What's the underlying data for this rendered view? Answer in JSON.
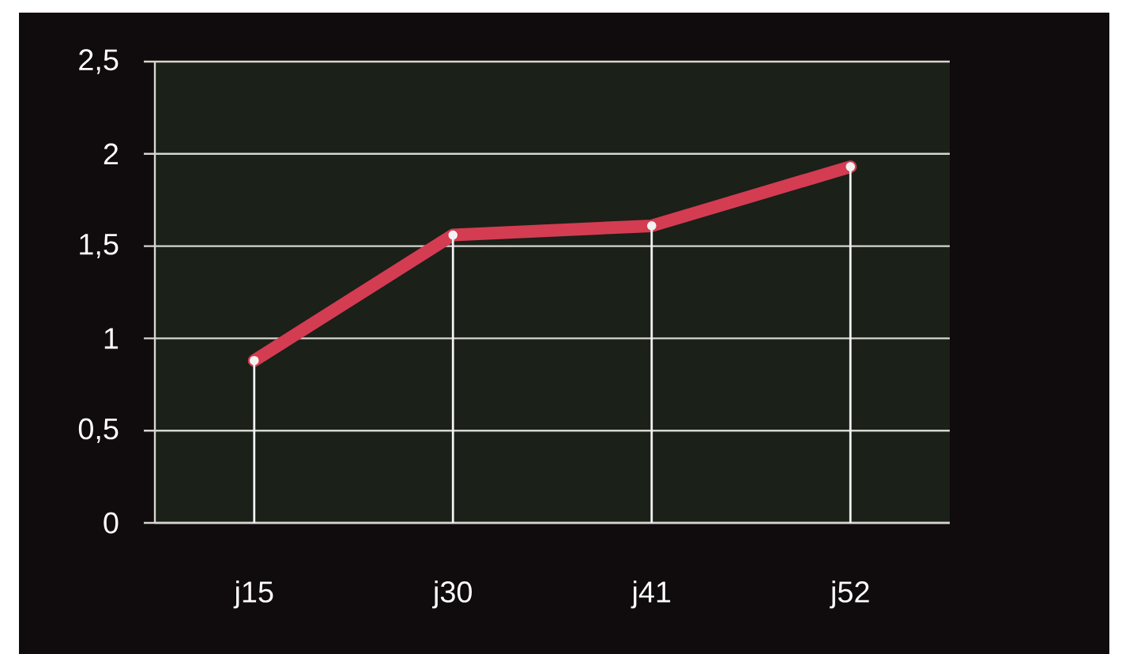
{
  "chart_data": {
    "type": "line",
    "categories": [
      "j15",
      "j30",
      "j41",
      "j52"
    ],
    "series": [
      {
        "color": "#d43c52",
        "values": [
          0.88,
          1.56,
          1.61,
          1.93
        ]
      },
      {
        "type": "lollipop",
        "color": "#f2f2f2",
        "marker": "circle",
        "values": [
          0.88,
          1.56,
          1.61,
          1.93
        ]
      }
    ],
    "ylim": [
      0,
      2.5
    ],
    "yticks": [
      0,
      {
        "value": 0.5,
        "label": "0,5"
      },
      1,
      {
        "value": 1.5,
        "label": "1,5"
      },
      2,
      {
        "value": 2.5,
        "label": "2,5"
      }
    ],
    "grid": "y"
  }
}
